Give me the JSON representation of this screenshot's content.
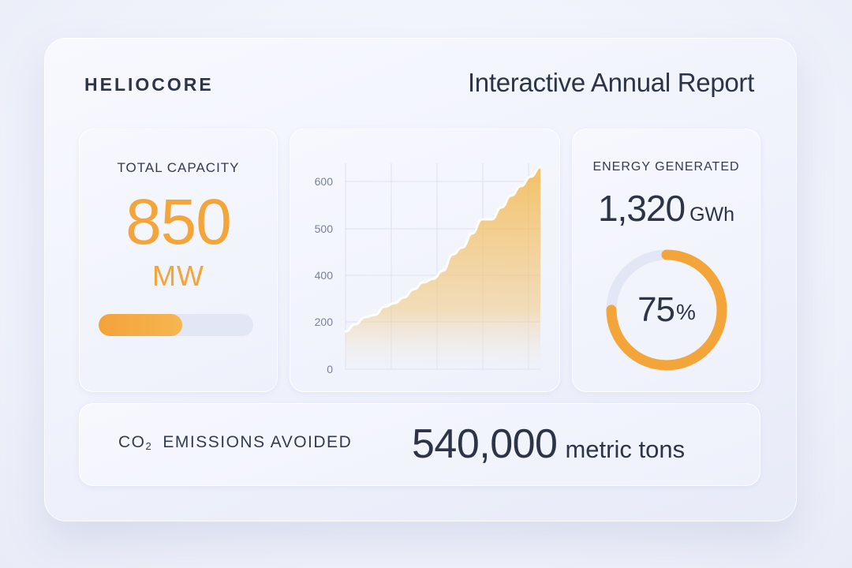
{
  "brand": "HELIOCORE",
  "report_title": "Interactive Annual Report",
  "capacity": {
    "label": "TOTAL CAPACITY",
    "value": "850",
    "unit": "MW",
    "progress_fraction": 0.54,
    "accent_color": "#f3a53a"
  },
  "energy": {
    "label": "ENERGY GENERATED",
    "value": "1,320",
    "unit": "GWh",
    "gauge_value": "75",
    "gauge_symbol": "%",
    "gauge_fraction": 0.75,
    "accent_color": "#f3a53a"
  },
  "co2": {
    "label_prefix": "CO",
    "label_subscript": "2",
    "label_suffix": "EMISSIONS AVOIDED",
    "value": "540,000",
    "unit": "metric tons"
  },
  "chart_data": {
    "type": "area",
    "title": "",
    "xlabel": "",
    "ylabel": "",
    "y_ticks": [
      600,
      500,
      400,
      200,
      0
    ],
    "ylim": [
      0,
      600
    ],
    "grid": true,
    "legend": "none",
    "x": [
      0,
      1,
      2,
      3,
      4,
      5,
      6,
      7,
      8,
      9,
      10,
      11,
      12,
      13,
      14,
      15,
      16,
      17,
      18,
      19,
      20
    ],
    "series": [
      {
        "values": [
          160,
          190,
          220,
          230,
          265,
          280,
          305,
          340,
          370,
          385,
          410,
          445,
          460,
          490,
          520,
          520,
          545,
          570,
          590,
          610,
          630
        ],
        "color": "#f3bd5f"
      }
    ]
  }
}
